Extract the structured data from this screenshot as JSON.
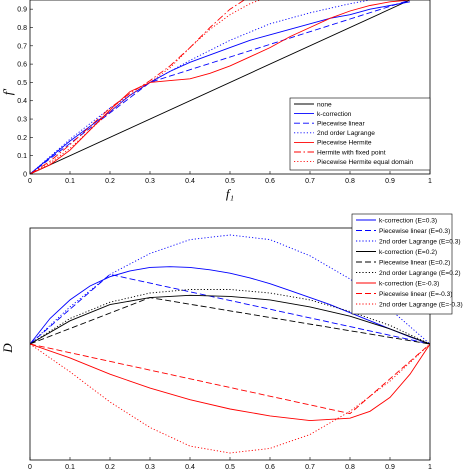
{
  "chart_data": [
    {
      "type": "line",
      "xlabel": "f₁",
      "ylabel": "f'",
      "xlim": [
        0,
        1
      ],
      "ylim": [
        0,
        0.95
      ],
      "x_ticks": [
        "0",
        "0.1",
        "0.2",
        "0.3",
        "0.4",
        "0.5",
        "0.6",
        "0.7",
        "0.8",
        "0.9",
        "1"
      ],
      "y_ticks": [
        "0",
        "0.1",
        "0.2",
        "0.3",
        "0.4",
        "0.5",
        "0.6",
        "0.7",
        "0.8",
        "0.9"
      ],
      "legend_position": "lower-right",
      "grid": false,
      "series": [
        {
          "name": "none",
          "color": "#000000",
          "style": "solid",
          "x": [
            0,
            0.95
          ],
          "y": [
            0,
            0.95
          ]
        },
        {
          "name": "k-correction",
          "color": "#0000ff",
          "style": "solid",
          "x": [
            0,
            0.05,
            0.1,
            0.15,
            0.2,
            0.25,
            0.3,
            0.35,
            0.4,
            0.45,
            0.5,
            0.55,
            0.6,
            0.65,
            0.7,
            0.75,
            0.8,
            0.85,
            0.9,
            0.95
          ],
          "y": [
            0,
            0.09,
            0.18,
            0.26,
            0.34,
            0.43,
            0.5,
            0.56,
            0.61,
            0.65,
            0.69,
            0.73,
            0.76,
            0.79,
            0.82,
            0.85,
            0.87,
            0.9,
            0.92,
            0.94
          ]
        },
        {
          "name": "Piecewise linear",
          "color": "#0000ff",
          "style": "dashed",
          "x": [
            0,
            0.3,
            0.95
          ],
          "y": [
            0,
            0.5,
            0.95
          ]
        },
        {
          "name": "2nd order Lagrange",
          "color": "#0000ff",
          "style": "dotted",
          "x": [
            0,
            0.1,
            0.2,
            0.3,
            0.4,
            0.5,
            0.6,
            0.7,
            0.8,
            0.85
          ],
          "y": [
            0,
            0.19,
            0.36,
            0.5,
            0.62,
            0.73,
            0.82,
            0.88,
            0.93,
            0.95
          ]
        },
        {
          "name": "Piecewise Hermite",
          "color": "#ff0000",
          "style": "solid",
          "x": [
            0,
            0.05,
            0.1,
            0.15,
            0.2,
            0.25,
            0.3,
            0.35,
            0.4,
            0.45,
            0.5,
            0.55,
            0.6,
            0.65,
            0.7,
            0.75,
            0.8,
            0.85,
            0.9,
            0.95
          ],
          "y": [
            0,
            0.05,
            0.13,
            0.24,
            0.35,
            0.45,
            0.5,
            0.51,
            0.52,
            0.55,
            0.59,
            0.64,
            0.69,
            0.75,
            0.8,
            0.85,
            0.89,
            0.92,
            0.94,
            0.95
          ]
        },
        {
          "name": "Hermite with fixed point",
          "color": "#ff0000",
          "style": "dashdot",
          "x": [
            0,
            0.05,
            0.1,
            0.15,
            0.2,
            0.25,
            0.3,
            0.35,
            0.4,
            0.45,
            0.5,
            0.55
          ],
          "y": [
            0,
            0.07,
            0.16,
            0.26,
            0.36,
            0.44,
            0.51,
            0.59,
            0.69,
            0.8,
            0.9,
            0.97
          ]
        },
        {
          "name": "Piecewise Hermite equal domain",
          "color": "#ff0000",
          "style": "dotted",
          "x": [
            0,
            0.05,
            0.1,
            0.15,
            0.2,
            0.25,
            0.3,
            0.35,
            0.4,
            0.45,
            0.5,
            0.55,
            0.6
          ],
          "y": [
            0,
            0.06,
            0.14,
            0.24,
            0.34,
            0.43,
            0.5,
            0.58,
            0.69,
            0.79,
            0.87,
            0.93,
            0.97
          ]
        }
      ]
    },
    {
      "type": "line",
      "xlabel": "",
      "ylabel": "D",
      "xlim": [
        0,
        1
      ],
      "ylim": [
        -0.5,
        0.5
      ],
      "x_ticks": [
        "0",
        "0.1",
        "0.2",
        "0.3",
        "0.4",
        "0.5",
        "0.6",
        "0.7",
        "0.8",
        "0.9",
        "1"
      ],
      "y_ticks": [],
      "legend_position": "top-right",
      "grid": false,
      "series": [
        {
          "name": "k-correction (E=0.3)",
          "color": "#0000ff",
          "style": "solid",
          "x": [
            0,
            0.05,
            0.1,
            0.15,
            0.2,
            0.25,
            0.3,
            0.35,
            0.4,
            0.45,
            0.5,
            0.55,
            0.6,
            0.65,
            0.7,
            0.75,
            0.8,
            0.85,
            0.9,
            0.95,
            1
          ],
          "y": [
            0,
            0.11,
            0.19,
            0.25,
            0.29,
            0.315,
            0.33,
            0.333,
            0.33,
            0.32,
            0.305,
            0.285,
            0.26,
            0.23,
            0.2,
            0.17,
            0.135,
            0.1,
            0.065,
            0.03,
            0
          ]
        },
        {
          "name": "Piecewise linear (E=0.3)",
          "color": "#0000ff",
          "style": "dashed",
          "x": [
            0,
            0.2,
            1
          ],
          "y": [
            0,
            0.3,
            0
          ]
        },
        {
          "name": "2nd order Lagrange (E=0.3)",
          "color": "#0000ff",
          "style": "dotted",
          "x": [
            0,
            0.1,
            0.2,
            0.3,
            0.4,
            0.5,
            0.6,
            0.7,
            0.8,
            0.9,
            1
          ],
          "y": [
            0,
            0.16,
            0.3,
            0.39,
            0.45,
            0.47,
            0.45,
            0.38,
            0.28,
            0.15,
            0
          ]
        },
        {
          "name": "k-correction (E=0.2)",
          "color": "#000000",
          "style": "solid",
          "x": [
            0,
            0.1,
            0.2,
            0.3,
            0.4,
            0.5,
            0.6,
            0.7,
            0.8,
            0.9,
            1
          ],
          "y": [
            0,
            0.1,
            0.17,
            0.2,
            0.21,
            0.205,
            0.19,
            0.16,
            0.12,
            0.065,
            0
          ]
        },
        {
          "name": "Piecewise linear (E=0.2)",
          "color": "#000000",
          "style": "dashed",
          "x": [
            0,
            0.3,
            1
          ],
          "y": [
            0,
            0.2,
            0
          ]
        },
        {
          "name": "2nd order Lagrange (E=0.2)",
          "color": "#000000",
          "style": "dotted",
          "x": [
            0,
            0.1,
            0.2,
            0.3,
            0.4,
            0.5,
            0.6,
            0.7,
            0.8,
            0.9,
            1
          ],
          "y": [
            0,
            0.11,
            0.18,
            0.22,
            0.235,
            0.235,
            0.22,
            0.19,
            0.14,
            0.08,
            0
          ]
        },
        {
          "name": "k-correction (E=-0.3)",
          "color": "#ff0000",
          "style": "solid",
          "x": [
            0,
            0.1,
            0.2,
            0.3,
            0.4,
            0.5,
            0.6,
            0.7,
            0.8,
            0.85,
            0.9,
            0.95,
            1
          ],
          "y": [
            0,
            -0.06,
            -0.13,
            -0.19,
            -0.24,
            -0.28,
            -0.31,
            -0.33,
            -0.32,
            -0.29,
            -0.23,
            -0.13,
            0
          ]
        },
        {
          "name": "Piecewise linear (E=-0.3)",
          "color": "#ff0000",
          "style": "dashed",
          "x": [
            0,
            0.8,
            1
          ],
          "y": [
            0,
            -0.3,
            0
          ]
        },
        {
          "name": "2nd order Lagrange (E=-0.3)",
          "color": "#ff0000",
          "style": "dotted",
          "x": [
            0,
            0.1,
            0.2,
            0.3,
            0.4,
            0.5,
            0.6,
            0.7,
            0.8,
            0.9,
            1
          ],
          "y": [
            0,
            -0.12,
            -0.25,
            -0.36,
            -0.44,
            -0.47,
            -0.45,
            -0.39,
            -0.29,
            -0.16,
            0
          ]
        }
      ]
    }
  ]
}
